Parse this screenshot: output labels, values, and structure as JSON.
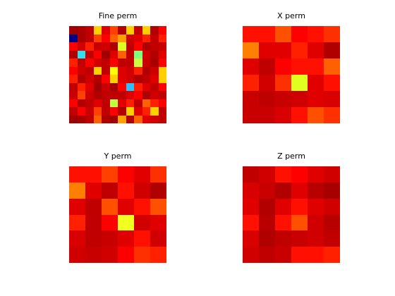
{
  "figure": {
    "background": "#ffffff",
    "colormap": "hot-like (dark red → red → orange → yellow → cyan → blue)"
  },
  "chart_data": [
    {
      "type": "heatmap",
      "title": "Fine perm",
      "rows": 12,
      "cols": 12,
      "colors": [
        [
          "#a00000",
          "#aa0000",
          "#c00000",
          "#ffd000",
          "#e00000",
          "#ff4000",
          "#b00000",
          "#ffd000",
          "#c80000",
          "#ffd000",
          "#b00000",
          "#ff0000"
        ],
        [
          "#000080",
          "#aa0000",
          "#c00000",
          "#ff4000",
          "#ff0000",
          "#ff6000",
          "#ffa000",
          "#d00000",
          "#e00000",
          "#ff2000",
          "#c00000",
          "#ff2000"
        ],
        [
          "#ff0000",
          "#d00000",
          "#ff2000",
          "#c80000",
          "#d00000",
          "#b00000",
          "#e0ff20",
          "#c00000",
          "#ff0000",
          "#b00000",
          "#c00000",
          "#c80000"
        ],
        [
          "#b00000",
          "#30e0f0",
          "#c00000",
          "#ff0000",
          "#a00000",
          "#e00000",
          "#ff6000",
          "#c00000",
          "#80ff80",
          "#d00000",
          "#b00000",
          "#e00000"
        ],
        [
          "#ff2000",
          "#c00000",
          "#ff0000",
          "#d00000",
          "#c00000",
          "#ff0000",
          "#c00000",
          "#c00000",
          "#d0ff40",
          "#c80000",
          "#a80000",
          "#ff0000"
        ],
        [
          "#ff0000",
          "#d00000",
          "#c00000",
          "#ffd000",
          "#c00000",
          "#ffff00",
          "#e00000",
          "#d00000",
          "#ff2000",
          "#b00000",
          "#d00000",
          "#ffd000"
        ],
        [
          "#ff2000",
          "#b00000",
          "#d00000",
          "#b00000",
          "#ff0000",
          "#ffd000",
          "#e00000",
          "#d00000",
          "#b00000",
          "#c00000",
          "#e00000",
          "#ffd000"
        ],
        [
          "#c00000",
          "#ff2000",
          "#e00000",
          "#a00000",
          "#c80000",
          "#a00000",
          "#ff0000",
          "#30c0ff",
          "#ff2000",
          "#e00000",
          "#c00000",
          "#ff0000"
        ],
        [
          "#c80000",
          "#ff4000",
          "#d00000",
          "#b00000",
          "#c00000",
          "#c00000",
          "#c00000",
          "#e00000",
          "#ff0000",
          "#b00000",
          "#d00000",
          "#c00000"
        ],
        [
          "#ff0000",
          "#b00000",
          "#c00000",
          "#e00000",
          "#c00000",
          "#c0ff40",
          "#e00000",
          "#ff2000",
          "#c00000",
          "#ff6000",
          "#ff2000",
          "#ff0000"
        ],
        [
          "#c00000",
          "#ff0000",
          "#c80000",
          "#ff4000",
          "#c00000",
          "#ff0000",
          "#b00000",
          "#ffd000",
          "#e00000",
          "#ff2000",
          "#ffd000",
          "#c00000"
        ],
        [
          "#a00000",
          "#a80000",
          "#c00000",
          "#ff6000",
          "#b00000",
          "#a00000",
          "#ffa000",
          "#b00000",
          "#ff6000",
          "#e00000",
          "#d00000",
          "#c00000"
        ]
      ]
    },
    {
      "type": "heatmap",
      "title": "X perm",
      "rows": 6,
      "cols": 6,
      "colors": [
        [
          "#ff1000",
          "#ff1000",
          "#ff5000",
          "#ff0000",
          "#ff1000",
          "#ff3000"
        ],
        [
          "#ff8000",
          "#e00000",
          "#e00000",
          "#ff2000",
          "#e00000",
          "#b00000"
        ],
        [
          "#e00000",
          "#c00000",
          "#ff0000",
          "#ff1000",
          "#ff1000",
          "#ff6000"
        ],
        [
          "#ff2000",
          "#d00000",
          "#ff3000",
          "#e0ff20",
          "#e00000",
          "#ff1000"
        ],
        [
          "#c80000",
          "#c00000",
          "#c80000",
          "#d00000",
          "#e00000",
          "#d80000"
        ],
        [
          "#c80000",
          "#c80000",
          "#d80000",
          "#ff1000",
          "#ff5000",
          "#ff3000"
        ]
      ]
    },
    {
      "type": "heatmap",
      "title": "Y perm",
      "rows": 6,
      "cols": 6,
      "colors": [
        [
          "#ff1000",
          "#ff1000",
          "#ff4000",
          "#ff0000",
          "#e00000",
          "#ff3000"
        ],
        [
          "#ff8000",
          "#e00000",
          "#c00000",
          "#ff1000",
          "#d00000",
          "#b00000"
        ],
        [
          "#e00000",
          "#c00000",
          "#ff5000",
          "#e00000",
          "#ff1000",
          "#ff5000"
        ],
        [
          "#ff2000",
          "#c00000",
          "#ff0000",
          "#f0ff20",
          "#d00000",
          "#e00000"
        ],
        [
          "#d80000",
          "#c00000",
          "#c80000",
          "#e00000",
          "#ff1000",
          "#d00000"
        ],
        [
          "#d00000",
          "#c80000",
          "#d00000",
          "#ff0000",
          "#ff3000",
          "#ff2000"
        ]
      ]
    },
    {
      "type": "heatmap",
      "title": "Z perm",
      "rows": 6,
      "cols": 6,
      "colors": [
        [
          "#c00000",
          "#d00000",
          "#ff1000",
          "#ff0000",
          "#e00000",
          "#d00000"
        ],
        [
          "#d80000",
          "#c80000",
          "#b00000",
          "#e00000",
          "#b80000",
          "#a80000"
        ],
        [
          "#e00000",
          "#b00000",
          "#e00000",
          "#ff1000",
          "#e00000",
          "#d00000"
        ],
        [
          "#ff1000",
          "#b80000",
          "#ff1000",
          "#ff5000",
          "#d00000",
          "#b80000"
        ],
        [
          "#d80000",
          "#b00000",
          "#c00000",
          "#c80000",
          "#d00000",
          "#c00000"
        ],
        [
          "#d00000",
          "#c00000",
          "#c80000",
          "#ff1000",
          "#ff1000",
          "#ff2000"
        ]
      ]
    }
  ]
}
